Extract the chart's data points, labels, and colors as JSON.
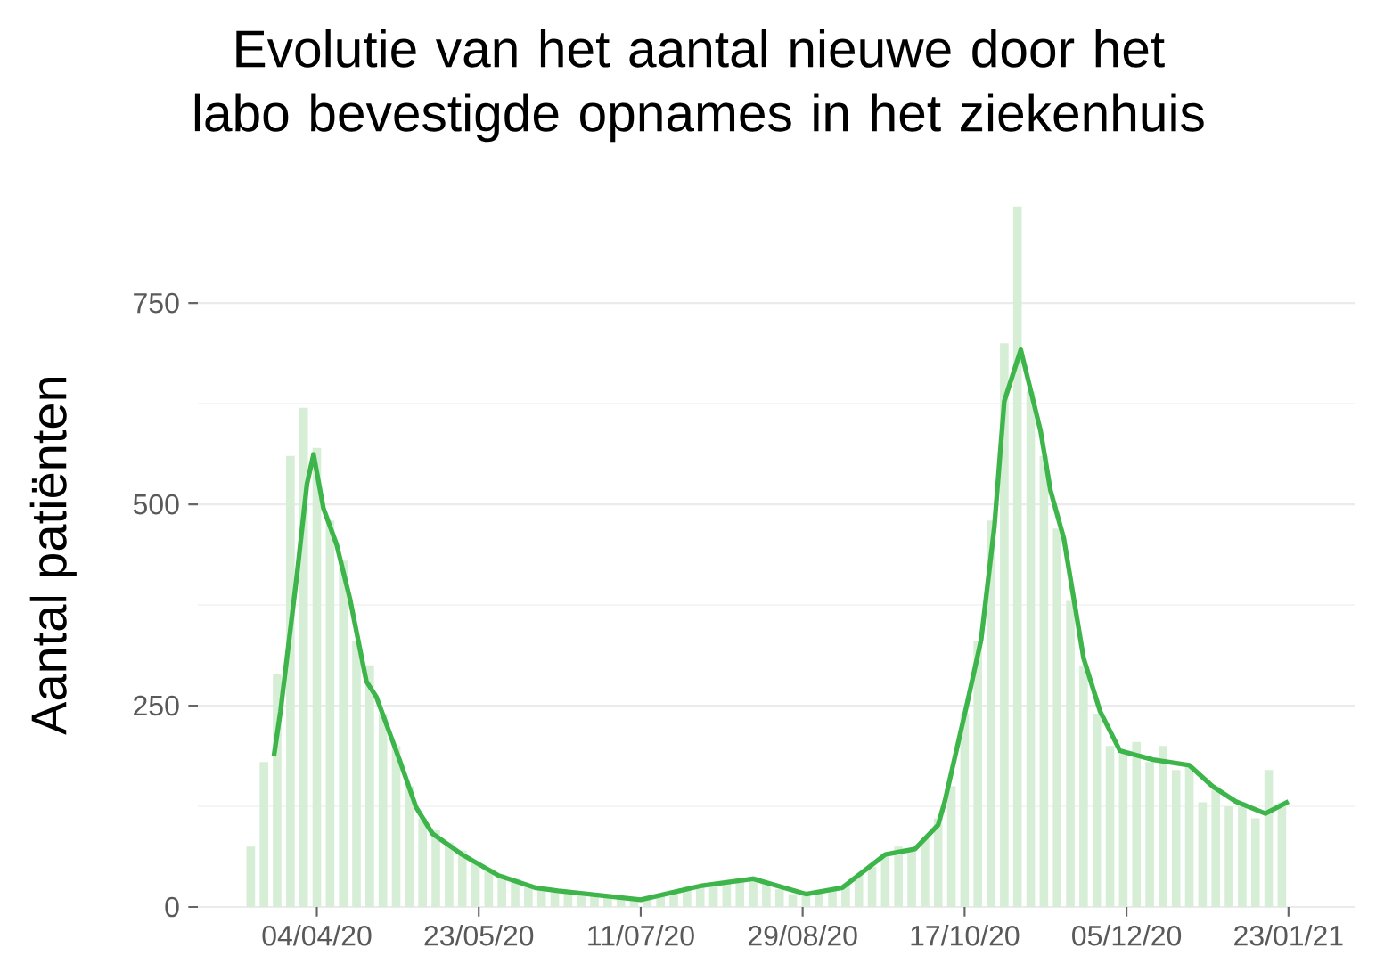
{
  "chart_data": {
    "type": "bar",
    "title": "Evolutie van het aantal nieuwe door het labo bevestigde opnames in het ziekenhuis",
    "ylabel": "Aantal patiënten",
    "xlim": [
      "2020-02-28",
      "2021-02-12"
    ],
    "xticks": [
      {
        "value": "2020-04-04",
        "label": "04/04/20"
      },
      {
        "value": "2020-05-23",
        "label": "23/05/20"
      },
      {
        "value": "2020-07-11",
        "label": "11/07/20"
      },
      {
        "value": "2020-08-29",
        "label": "29/08/20"
      },
      {
        "value": "2020-10-17",
        "label": "17/10/20"
      },
      {
        "value": "2020-12-05",
        "label": "05/12/20"
      },
      {
        "value": "2021-01-23",
        "label": "23/01/21"
      }
    ],
    "ylim": [
      0,
      875
    ],
    "yticks": [
      0,
      250,
      500,
      750
    ],
    "grid": "y",
    "series": [
      {
        "color": "#d6eed6",
        "x": [
          "2020-03-15",
          "2020-03-19",
          "2020-03-23",
          "2020-03-27",
          "2020-03-31",
          "2020-04-04",
          "2020-04-08",
          "2020-04-12",
          "2020-04-16",
          "2020-04-20",
          "2020-04-24",
          "2020-04-28",
          "2020-05-02",
          "2020-05-06",
          "2020-05-10",
          "2020-05-14",
          "2020-05-18",
          "2020-05-22",
          "2020-05-26",
          "2020-05-30",
          "2020-06-03",
          "2020-06-07",
          "2020-06-11",
          "2020-06-15",
          "2020-06-19",
          "2020-06-23",
          "2020-06-27",
          "2020-07-01",
          "2020-07-05",
          "2020-07-09",
          "2020-07-13",
          "2020-07-17",
          "2020-07-21",
          "2020-07-25",
          "2020-07-29",
          "2020-08-02",
          "2020-08-06",
          "2020-08-10",
          "2020-08-14",
          "2020-08-18",
          "2020-08-22",
          "2020-08-26",
          "2020-08-30",
          "2020-09-03",
          "2020-09-07",
          "2020-09-11",
          "2020-09-15",
          "2020-09-19",
          "2020-09-23",
          "2020-09-27",
          "2020-10-01",
          "2020-10-05",
          "2020-10-09",
          "2020-10-13",
          "2020-10-17",
          "2020-10-21",
          "2020-10-25",
          "2020-10-29",
          "2020-11-02",
          "2020-11-06",
          "2020-11-10",
          "2020-11-14",
          "2020-11-18",
          "2020-11-22",
          "2020-11-26",
          "2020-11-30",
          "2020-12-04",
          "2020-12-08",
          "2020-12-12",
          "2020-12-16",
          "2020-12-20",
          "2020-12-24",
          "2020-12-28",
          "2021-01-01",
          "2021-01-05",
          "2021-01-09",
          "2021-01-13",
          "2021-01-17",
          "2021-01-21"
        ],
        "values": [
          75,
          180,
          290,
          560,
          620,
          570,
          480,
          430,
          330,
          300,
          240,
          200,
          150,
          110,
          95,
          80,
          70,
          55,
          48,
          40,
          35,
          28,
          25,
          22,
          18,
          16,
          14,
          12,
          10,
          9,
          10,
          14,
          20,
          25,
          28,
          30,
          32,
          35,
          38,
          30,
          22,
          16,
          15,
          18,
          22,
          28,
          40,
          50,
          62,
          75,
          70,
          85,
          110,
          150,
          240,
          330,
          480,
          700,
          870,
          640,
          560,
          470,
          380,
          300,
          240,
          200,
          190,
          205,
          180,
          200,
          170,
          175,
          130,
          150,
          125,
          130,
          110,
          170,
          130
        ]
      },
      {
        "type": "line",
        "color": "#3db54a",
        "x": [
          "2020-03-22",
          "2020-03-24",
          "2020-03-29",
          "2020-04-01",
          "2020-04-03",
          "2020-04-06",
          "2020-04-10",
          "2020-04-14",
          "2020-04-19",
          "2020-04-22",
          "2020-04-29",
          "2020-05-04",
          "2020-05-09",
          "2020-05-18",
          "2020-05-29",
          "2020-06-09",
          "2020-06-16",
          "2020-07-11",
          "2020-07-29",
          "2020-08-14",
          "2020-08-30",
          "2020-09-10",
          "2020-09-23",
          "2020-10-02",
          "2020-10-09",
          "2020-10-11",
          "2020-10-18",
          "2020-10-22",
          "2020-10-26",
          "2020-10-29",
          "2020-11-03",
          "2020-11-09",
          "2020-11-12",
          "2020-11-16",
          "2020-11-22",
          "2020-11-27",
          "2020-12-03",
          "2020-12-13",
          "2020-12-24",
          "2020-12-31",
          "2021-01-07",
          "2021-01-16",
          "2021-01-23"
        ],
        "values": [
          187,
          243,
          413,
          525,
          562,
          495,
          450,
          383,
          280,
          261,
          183,
          124,
          91,
          65,
          39,
          24,
          20,
          9,
          26,
          35,
          16,
          24,
          65,
          72,
          102,
          131,
          257,
          332,
          472,
          628,
          692,
          591,
          517,
          458,
          309,
          243,
          194,
          183,
          176,
          150,
          131,
          116,
          131
        ]
      }
    ]
  }
}
